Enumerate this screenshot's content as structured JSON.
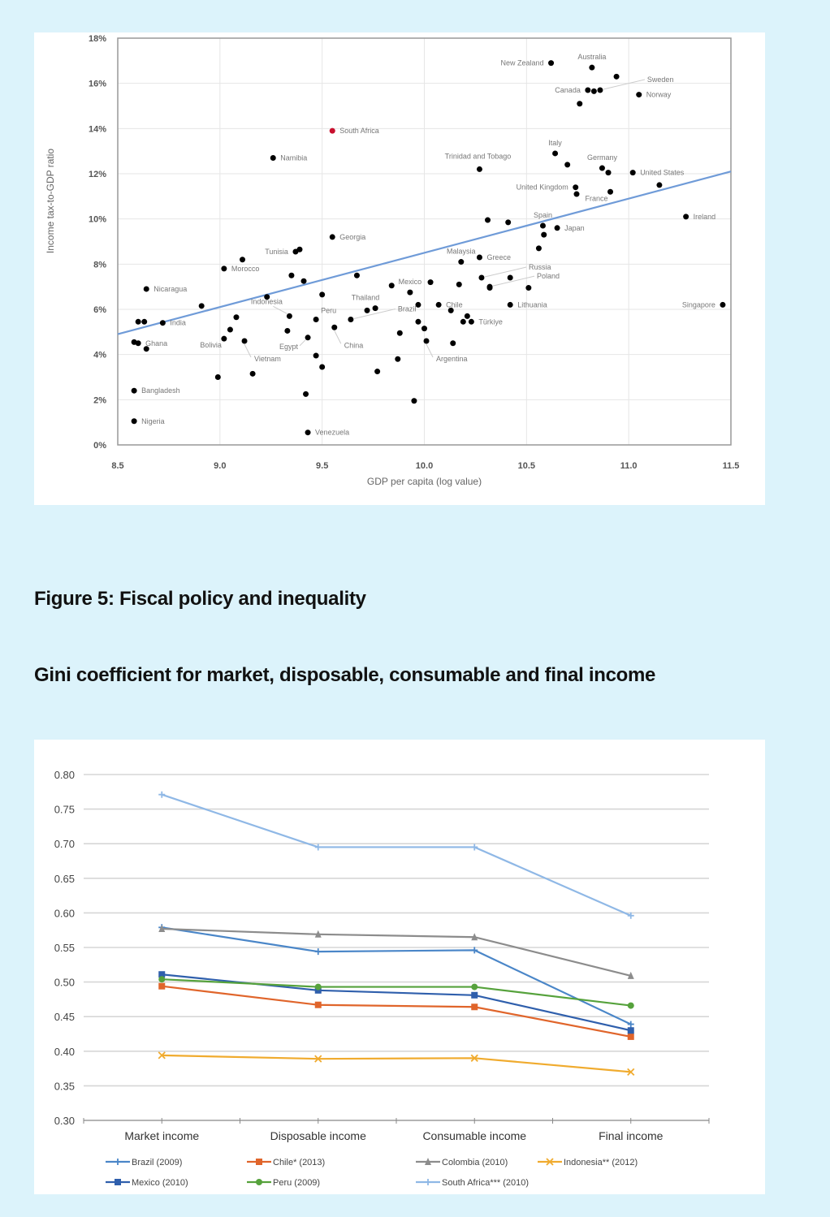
{
  "headings": {
    "figure_title": "Figure 5: Fiscal policy and inequality",
    "figure_subtitle": "Gini coefficient for market, disposable, consumable and final income"
  },
  "chart_data": [
    {
      "type": "scatter",
      "title": "",
      "xlabel": "GDP per capita (log value)",
      "ylabel": "Income tax-to-GDP ratio",
      "xlim": [
        8.5,
        11.5
      ],
      "ylim": [
        0,
        18
      ],
      "xticks": [
        "8.5",
        "9.0",
        "9.5",
        "10.0",
        "10.5",
        "11.0",
        "11.5"
      ],
      "yticks": [
        "0%",
        "2%",
        "4%",
        "6%",
        "8%",
        "10%",
        "12%",
        "14%",
        "16%",
        "18%"
      ],
      "grid": true,
      "trendline": {
        "color": "#6f9bd8",
        "x": [
          8.5,
          11.5
        ],
        "y": [
          4.9,
          12.1
        ]
      },
      "highlight_color": "#c8102e",
      "point_color": "#000000",
      "points": [
        {
          "x": 10.62,
          "y": 16.9,
          "label": "New Zealand",
          "lpos": "left"
        },
        {
          "x": 10.82,
          "y": 16.7,
          "label": "Australia",
          "lpos": "above"
        },
        {
          "x": 10.94,
          "y": 16.3,
          "label": "",
          "lpos": ""
        },
        {
          "x": 10.8,
          "y": 15.7,
          "label": "Canada",
          "lpos": "left"
        },
        {
          "x": 10.83,
          "y": 15.65,
          "label": "",
          "lpos": ""
        },
        {
          "x": 10.86,
          "y": 15.7,
          "label": "Sweden",
          "lpos": "leader-right"
        },
        {
          "x": 11.05,
          "y": 15.5,
          "label": "Norway",
          "lpos": "right"
        },
        {
          "x": 10.76,
          "y": 15.1,
          "label": "",
          "lpos": ""
        },
        {
          "x": 9.55,
          "y": 13.9,
          "label": "South Africa",
          "lpos": "right",
          "highlight": true
        },
        {
          "x": 9.26,
          "y": 12.7,
          "label": "Namibia",
          "lpos": "right"
        },
        {
          "x": 10.64,
          "y": 12.9,
          "label": "Italy",
          "lpos": "above"
        },
        {
          "x": 10.7,
          "y": 12.4,
          "label": "",
          "lpos": ""
        },
        {
          "x": 10.27,
          "y": 12.2,
          "label": "Trinidad and Tobago",
          "lpos": "above-left"
        },
        {
          "x": 10.87,
          "y": 12.25,
          "label": "Germany",
          "lpos": "above"
        },
        {
          "x": 10.9,
          "y": 12.05,
          "label": "",
          "lpos": ""
        },
        {
          "x": 11.02,
          "y": 12.05,
          "label": "United States",
          "lpos": "right"
        },
        {
          "x": 11.15,
          "y": 11.5,
          "label": "",
          "lpos": ""
        },
        {
          "x": 10.74,
          "y": 11.4,
          "label": "United Kingdom",
          "lpos": "left"
        },
        {
          "x": 10.745,
          "y": 11.1,
          "label": "",
          "lpos": ""
        },
        {
          "x": 10.91,
          "y": 11.2,
          "label": "France",
          "lpos": "left-below"
        },
        {
          "x": 11.28,
          "y": 10.1,
          "label": "Ireland",
          "lpos": "right"
        },
        {
          "x": 10.31,
          "y": 9.95,
          "label": "",
          "lpos": ""
        },
        {
          "x": 10.41,
          "y": 9.85,
          "label": "",
          "lpos": ""
        },
        {
          "x": 10.58,
          "y": 9.7,
          "label": "Spain",
          "lpos": "above"
        },
        {
          "x": 10.65,
          "y": 9.6,
          "label": "Japan",
          "lpos": "right"
        },
        {
          "x": 10.585,
          "y": 9.3,
          "label": "",
          "lpos": ""
        },
        {
          "x": 10.56,
          "y": 8.7,
          "label": "",
          "lpos": ""
        },
        {
          "x": 9.55,
          "y": 9.2,
          "label": "Georgia",
          "lpos": "right"
        },
        {
          "x": 10.18,
          "y": 8.1,
          "label": "Malaysia",
          "lpos": "above"
        },
        {
          "x": 10.27,
          "y": 8.3,
          "label": "Greece",
          "lpos": "right"
        },
        {
          "x": 10.28,
          "y": 7.4,
          "label": "Russia",
          "lpos": "leader-right"
        },
        {
          "x": 10.42,
          "y": 7.4,
          "label": "",
          "lpos": ""
        },
        {
          "x": 10.32,
          "y": 7.0,
          "label": "Poland",
          "lpos": "leader-right"
        },
        {
          "x": 10.32,
          "y": 6.95,
          "label": "",
          "lpos": ""
        },
        {
          "x": 10.51,
          "y": 6.95,
          "label": "",
          "lpos": ""
        },
        {
          "x": 10.42,
          "y": 6.2,
          "label": "Lithuania",
          "lpos": "right"
        },
        {
          "x": 11.46,
          "y": 6.2,
          "label": "Singapore",
          "lpos": "left"
        },
        {
          "x": 9.37,
          "y": 8.55,
          "label": "Tunisia",
          "lpos": "left"
        },
        {
          "x": 9.39,
          "y": 8.65,
          "label": "",
          "lpos": ""
        },
        {
          "x": 9.11,
          "y": 8.2,
          "label": "",
          "lpos": ""
        },
        {
          "x": 9.02,
          "y": 7.8,
          "label": "Morocco",
          "lpos": "right"
        },
        {
          "x": 9.35,
          "y": 7.5,
          "label": "",
          "lpos": ""
        },
        {
          "x": 9.41,
          "y": 7.25,
          "label": "",
          "lpos": ""
        },
        {
          "x": 9.67,
          "y": 7.5,
          "label": "",
          "lpos": ""
        },
        {
          "x": 9.93,
          "y": 6.75,
          "label": "Mexico",
          "lpos": "above"
        },
        {
          "x": 10.03,
          "y": 7.2,
          "label": "",
          "lpos": ""
        },
        {
          "x": 9.84,
          "y": 7.05,
          "label": "",
          "lpos": ""
        },
        {
          "x": 10.17,
          "y": 7.1,
          "label": "",
          "lpos": ""
        },
        {
          "x": 8.64,
          "y": 6.9,
          "label": "Nicaragua",
          "lpos": "right"
        },
        {
          "x": 8.91,
          "y": 6.15,
          "label": "",
          "lpos": ""
        },
        {
          "x": 9.23,
          "y": 6.55,
          "label": "",
          "lpos": ""
        },
        {
          "x": 9.5,
          "y": 6.65,
          "label": "",
          "lpos": ""
        },
        {
          "x": 9.72,
          "y": 5.95,
          "label": "Thailand",
          "lpos": "above-left"
        },
        {
          "x": 9.76,
          "y": 6.05,
          "label": "",
          "lpos": ""
        },
        {
          "x": 9.97,
          "y": 6.2,
          "label": "",
          "lpos": ""
        },
        {
          "x": 10.07,
          "y": 6.2,
          "label": "Chile",
          "lpos": "right"
        },
        {
          "x": 10.13,
          "y": 5.95,
          "label": "",
          "lpos": ""
        },
        {
          "x": 10.21,
          "y": 5.7,
          "label": "",
          "lpos": ""
        },
        {
          "x": 10.19,
          "y": 5.45,
          "label": "",
          "lpos": ""
        },
        {
          "x": 10.23,
          "y": 5.45,
          "label": "Türkiye",
          "lpos": "right"
        },
        {
          "x": 8.6,
          "y": 5.45,
          "label": "",
          "lpos": ""
        },
        {
          "x": 8.63,
          "y": 5.45,
          "label": "",
          "lpos": ""
        },
        {
          "x": 8.72,
          "y": 5.4,
          "label": "India",
          "lpos": "right"
        },
        {
          "x": 9.08,
          "y": 5.65,
          "label": "",
          "lpos": ""
        },
        {
          "x": 9.05,
          "y": 5.1,
          "label": "",
          "lpos": ""
        },
        {
          "x": 9.34,
          "y": 5.7,
          "label": "Indonesia",
          "lpos": "leader-above"
        },
        {
          "x": 9.33,
          "y": 5.05,
          "label": "",
          "lpos": ""
        },
        {
          "x": 9.47,
          "y": 5.55,
          "label": "Peru",
          "lpos": "above-right"
        },
        {
          "x": 9.64,
          "y": 5.55,
          "label": "Brazil",
          "lpos": "leader-right"
        },
        {
          "x": 9.56,
          "y": 5.2,
          "label": "China",
          "lpos": "leader-below"
        },
        {
          "x": 9.43,
          "y": 4.75,
          "label": "Egypt",
          "lpos": "leader-left"
        },
        {
          "x": 9.88,
          "y": 4.95,
          "label": "",
          "lpos": ""
        },
        {
          "x": 9.97,
          "y": 5.45,
          "label": "",
          "lpos": ""
        },
        {
          "x": 10.0,
          "y": 5.15,
          "label": "",
          "lpos": ""
        },
        {
          "x": 10.01,
          "y": 4.6,
          "label": "Argentina",
          "lpos": "leader-below"
        },
        {
          "x": 10.14,
          "y": 4.5,
          "label": "",
          "lpos": ""
        },
        {
          "x": 8.58,
          "y": 4.55,
          "label": "",
          "lpos": ""
        },
        {
          "x": 8.6,
          "y": 4.5,
          "label": "Ghana",
          "lpos": "right"
        },
        {
          "x": 8.64,
          "y": 4.25,
          "label": "",
          "lpos": ""
        },
        {
          "x": 9.02,
          "y": 4.7,
          "label": "Bolivia",
          "lpos": "left-below"
        },
        {
          "x": 9.12,
          "y": 4.6,
          "label": "Vietnam",
          "lpos": "leader-below"
        },
        {
          "x": 9.47,
          "y": 3.95,
          "label": "",
          "lpos": ""
        },
        {
          "x": 9.5,
          "y": 3.45,
          "label": "",
          "lpos": ""
        },
        {
          "x": 9.87,
          "y": 3.8,
          "label": "",
          "lpos": ""
        },
        {
          "x": 9.77,
          "y": 3.25,
          "label": "",
          "lpos": ""
        },
        {
          "x": 8.99,
          "y": 3.0,
          "label": "",
          "lpos": ""
        },
        {
          "x": 9.16,
          "y": 3.15,
          "label": "",
          "lpos": ""
        },
        {
          "x": 8.58,
          "y": 2.4,
          "label": "Bangladesh",
          "lpos": "right"
        },
        {
          "x": 9.42,
          "y": 2.25,
          "label": "",
          "lpos": ""
        },
        {
          "x": 9.95,
          "y": 1.95,
          "label": "",
          "lpos": ""
        },
        {
          "x": 8.58,
          "y": 1.05,
          "label": "Nigeria",
          "lpos": "right"
        },
        {
          "x": 9.43,
          "y": 0.55,
          "label": "Venezuela",
          "lpos": "right"
        }
      ]
    },
    {
      "type": "line",
      "title": "Gini coefficient for market, disposable, consumable and final income",
      "xlabel": "",
      "ylabel": "",
      "categories": [
        "Market income",
        "Disposable income",
        "Consumable income",
        "Final income"
      ],
      "ylim": [
        0.3,
        0.8
      ],
      "yticks": [
        "0.30",
        "0.35",
        "0.40",
        "0.45",
        "0.50",
        "0.55",
        "0.60",
        "0.65",
        "0.70",
        "0.75",
        "0.80"
      ],
      "grid": true,
      "legend_position": "bottom",
      "series": [
        {
          "name": "Brazil (2009)",
          "color": "#4a86c8",
          "marker": "plus",
          "values": [
            0.579,
            0.544,
            0.546,
            0.439
          ]
        },
        {
          "name": "Chile* (2013)",
          "color": "#e0652b",
          "marker": "square",
          "values": [
            0.494,
            0.467,
            0.464,
            0.421
          ]
        },
        {
          "name": "Colombia (2010)",
          "color": "#8c8c8c",
          "marker": "triangle",
          "values": [
            0.577,
            0.569,
            0.565,
            0.509
          ]
        },
        {
          "name": "Indonesia** (2012)",
          "color": "#f0ab2e",
          "marker": "x",
          "values": [
            0.394,
            0.389,
            0.39,
            0.37
          ]
        },
        {
          "name": "Mexico (2010)",
          "color": "#2f5fac",
          "marker": "square",
          "values": [
            0.511,
            0.488,
            0.481,
            0.43
          ]
        },
        {
          "name": "Peru (2009)",
          "color": "#56a23c",
          "marker": "circle",
          "values": [
            0.504,
            0.493,
            0.493,
            0.466
          ]
        },
        {
          "name": "South Africa*** (2010)",
          "color": "#8fb8e6",
          "marker": "plus",
          "values": [
            0.771,
            0.695,
            0.695,
            0.596
          ]
        }
      ]
    }
  ]
}
